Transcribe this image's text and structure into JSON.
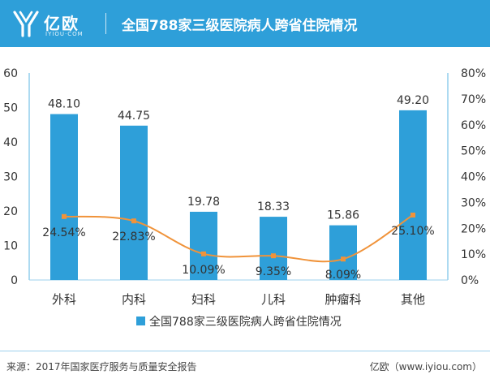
{
  "header": {
    "logo_text": "亿欧",
    "logo_sub": "IYIOU·COM",
    "title": "全国788家三级医院病人跨省住院情况"
  },
  "footer": {
    "source": "来源：2017年国家医疗服务与质量安全报告",
    "credit": "亿欧（www.iyiou.com）"
  },
  "colors": {
    "header_bg": "#2e9fd9",
    "bar": "#2e9fd9",
    "line": "#f0933a"
  },
  "chart_data": {
    "type": "bar",
    "title": "",
    "categories": [
      "外科",
      "内科",
      "妇科",
      "儿科",
      "肿瘤科",
      "其他"
    ],
    "series": [
      {
        "name": "全国788家三级医院病人跨省住院情况",
        "type": "bar",
        "axis": "left",
        "values": [
          48.1,
          44.75,
          19.78,
          18.33,
          15.86,
          49.2
        ],
        "labels": [
          "48.10",
          "44.75",
          "19.78",
          "18.33",
          "15.86",
          "49.20"
        ]
      },
      {
        "type": "line",
        "axis": "right",
        "smooth": true,
        "values": [
          24.54,
          22.83,
          10.09,
          9.35,
          8.09,
          25.1
        ],
        "labels": [
          "24.54%",
          "22.83%",
          "10.09%",
          "9.35%",
          "8.09%",
          "25.10%"
        ]
      }
    ],
    "y_left": {
      "min": 0,
      "max": 60,
      "ticks": [
        "0",
        "10",
        "20",
        "30",
        "40",
        "50",
        "60"
      ]
    },
    "y_right": {
      "min": 0,
      "max": 80,
      "ticks": [
        "0%",
        "10%",
        "20%",
        "30%",
        "40%",
        "50%",
        "60%",
        "70%",
        "80%"
      ]
    },
    "grid": false,
    "legend_position": "bottom"
  }
}
